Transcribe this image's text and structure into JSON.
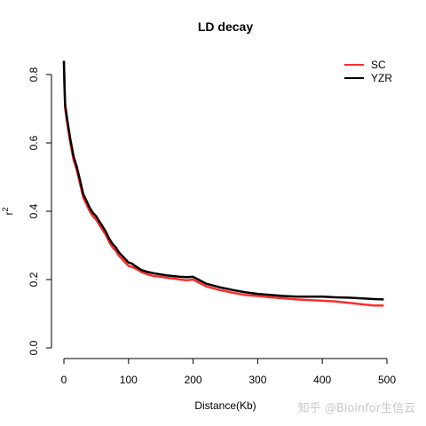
{
  "chart_data": {
    "type": "line",
    "title": "LD decay",
    "xlabel": "Distance(Kb)",
    "ylabel": "r",
    "ylabel_superscript": "2",
    "xlim": [
      0,
      500
    ],
    "ylim": [
      0,
      0.8
    ],
    "x_ticks": [
      0,
      100,
      200,
      300,
      400,
      500
    ],
    "y_ticks": [
      0.0,
      0.2,
      0.4,
      0.6,
      0.8
    ],
    "x_tick_labels": [
      "0",
      "100",
      "200",
      "300",
      "400",
      "500"
    ],
    "y_tick_labels": [
      "0.0",
      "0.2",
      "0.4",
      "0.6",
      "0.8"
    ],
    "grid": false,
    "legend_position": "top-right",
    "series": [
      {
        "name": "SC",
        "color": "#ff2d2d",
        "x": [
          0,
          1,
          2,
          5,
          10,
          15,
          20,
          25,
          30,
          35,
          40,
          45,
          50,
          55,
          60,
          65,
          70,
          75,
          80,
          85,
          90,
          95,
          100,
          105,
          110,
          115,
          120,
          130,
          140,
          150,
          160,
          170,
          180,
          190,
          200,
          210,
          220,
          240,
          260,
          280,
          300,
          320,
          340,
          360,
          380,
          400,
          420,
          440,
          460,
          480,
          495
        ],
        "y": [
          0.84,
          0.76,
          0.7,
          0.66,
          0.6,
          0.55,
          0.52,
          0.48,
          0.44,
          0.42,
          0.4,
          0.385,
          0.375,
          0.36,
          0.345,
          0.33,
          0.31,
          0.295,
          0.285,
          0.27,
          0.26,
          0.25,
          0.24,
          0.237,
          0.233,
          0.228,
          0.222,
          0.215,
          0.21,
          0.208,
          0.205,
          0.203,
          0.2,
          0.198,
          0.2,
          0.19,
          0.18,
          0.17,
          0.162,
          0.155,
          0.152,
          0.148,
          0.145,
          0.142,
          0.14,
          0.138,
          0.136,
          0.132,
          0.128,
          0.124,
          0.124
        ]
      },
      {
        "name": "YZR",
        "color": "#000000",
        "x": [
          0,
          1,
          2,
          5,
          10,
          15,
          20,
          25,
          30,
          35,
          40,
          45,
          50,
          55,
          60,
          65,
          70,
          75,
          80,
          85,
          90,
          95,
          100,
          105,
          110,
          115,
          120,
          130,
          140,
          150,
          160,
          170,
          180,
          190,
          200,
          210,
          220,
          240,
          260,
          280,
          300,
          320,
          340,
          360,
          380,
          400,
          420,
          440,
          460,
          480,
          495
        ],
        "y": [
          0.84,
          0.76,
          0.71,
          0.67,
          0.61,
          0.56,
          0.53,
          0.49,
          0.45,
          0.43,
          0.41,
          0.395,
          0.385,
          0.37,
          0.355,
          0.34,
          0.32,
          0.305,
          0.295,
          0.28,
          0.27,
          0.26,
          0.25,
          0.247,
          0.24,
          0.234,
          0.228,
          0.222,
          0.218,
          0.215,
          0.212,
          0.21,
          0.208,
          0.207,
          0.208,
          0.198,
          0.188,
          0.178,
          0.17,
          0.163,
          0.158,
          0.155,
          0.152,
          0.15,
          0.15,
          0.15,
          0.148,
          0.147,
          0.145,
          0.143,
          0.142
        ]
      }
    ]
  },
  "watermark": "知乎 @Bioinfor生信云"
}
